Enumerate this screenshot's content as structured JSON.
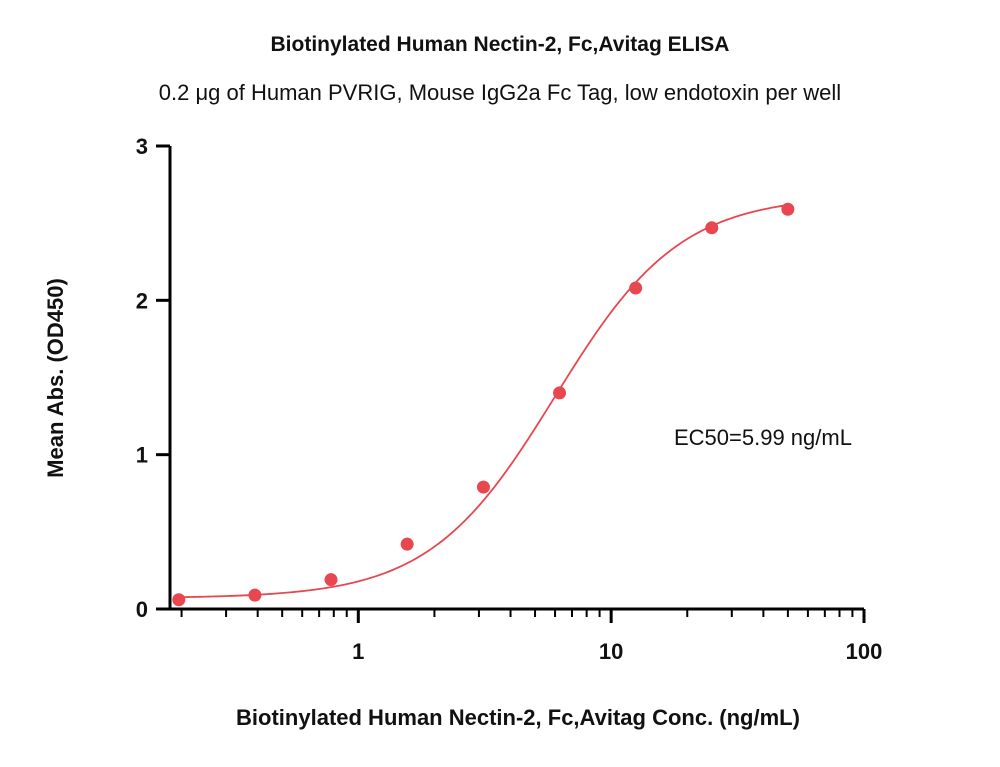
{
  "chart_data": {
    "type": "scatter",
    "title": "Biotinylated Human Nectin-2, Fc,Avitag ELISA",
    "subtitle": "0.2 μg of Human PVRIG, Mouse IgG2a Fc Tag, low endotoxin per well",
    "xlabel": "Biotinylated Human Nectin-2, Fc,Avitag Conc. (ng/mL)",
    "ylabel": "Mean Abs. (OD450)",
    "x_scale": "log",
    "xlim": [
      0.18,
      100
    ],
    "ylim": [
      0,
      3
    ],
    "x_ticks": [
      1,
      10,
      100
    ],
    "x_tick_labels": [
      "1",
      "10",
      "100"
    ],
    "y_ticks": [
      0,
      1,
      2,
      3
    ],
    "y_tick_labels": [
      "0",
      "1",
      "2",
      "3"
    ],
    "annotation": "EC50=5.99 ng/mL",
    "color": "#e8474f",
    "series": [
      {
        "x": [
          0.195,
          0.39,
          0.78,
          1.56,
          3.125,
          6.25,
          12.5,
          25,
          50
        ],
        "y": [
          0.06,
          0.09,
          0.19,
          0.42,
          0.79,
          1.4,
          2.08,
          2.47,
          2.59
        ]
      }
    ],
    "fit": {
      "bottom": 0.07,
      "top": 2.68,
      "ec50": 5.99,
      "hill": 1.75
    }
  }
}
